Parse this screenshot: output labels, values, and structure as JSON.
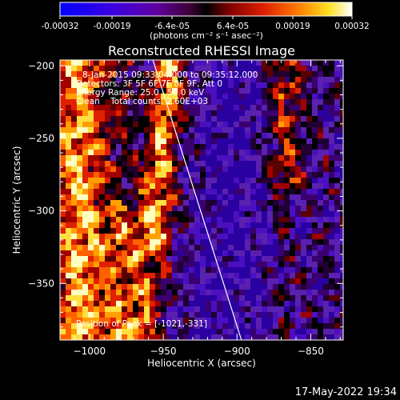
{
  "colorbar": {
    "tick_labels": [
      "-0.00032",
      "-0.00019",
      "-6.4e-05",
      "6.4e-05",
      "0.00019",
      "0.00032"
    ],
    "unit_label": "(photons cm⁻² s⁻¹ asec⁻²)",
    "range": [
      -0.00032,
      0.00032
    ]
  },
  "chart_data": {
    "type": "heatmap",
    "title": "Reconstructed RHESSI Image",
    "xlabel": "Heliocentric X (arcsec)",
    "ylabel": "Heliocentric Y (arcsec)",
    "xlim": [
      -1020,
      -828
    ],
    "ylim": [
      -389,
      -196
    ],
    "xticks": [
      -1000,
      -950,
      -900,
      -850
    ],
    "yticks": [
      -200,
      -250,
      -300,
      -350
    ],
    "xtick_labels": [
      "−1000",
      "−950",
      "−900",
      "−850"
    ],
    "ytick_labels": [
      "−200",
      "−250",
      "−300",
      "−350"
    ],
    "limb_line": {
      "x": [
        -957,
        -897
      ],
      "y": [
        -196,
        -389
      ]
    },
    "annotations": [
      "8-Jan-2015 09:33:04.000 to 09:35:12.000",
      "Detectors: 3F 5F 6F 7F 8F 9F, Att 0",
      "Energy Range: 25.0 - 50.0 keV",
      "Clean    Total counts: 2.60E+03"
    ],
    "peak_label": "Position of Peak = [-1021,-331]",
    "peak_position": [
      -1021,
      -331
    ],
    "grid": false,
    "colormap": "blue-purple-red-yellow-white"
  },
  "footer": {
    "timestamp": "17-May-2022 19:34"
  }
}
